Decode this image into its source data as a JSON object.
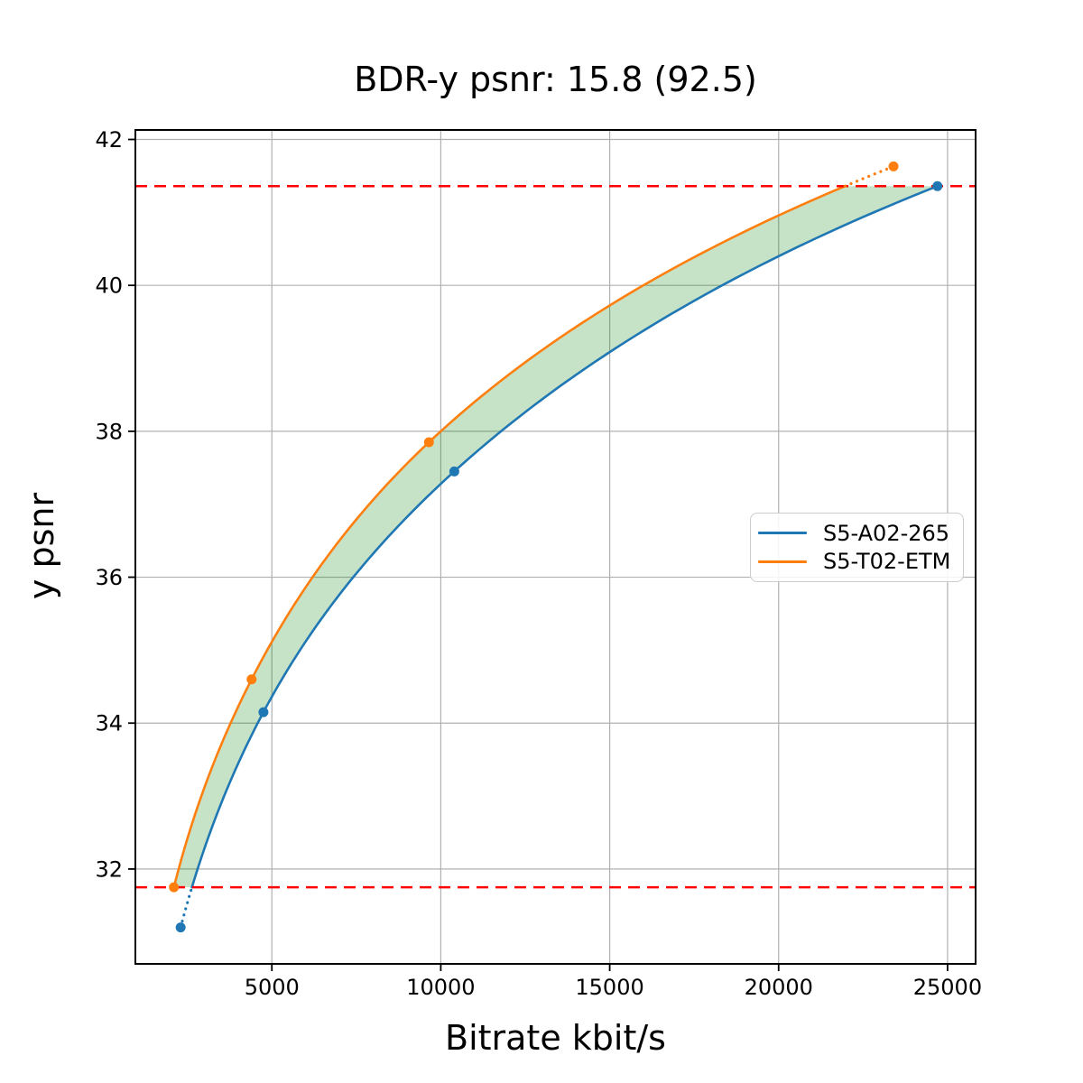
{
  "chart_data": {
    "type": "line",
    "title": "BDR-y psnr: 15.8 (92.5)",
    "xlabel": "Bitrate kbit/s",
    "ylabel": "y psnr",
    "xlim": [
      960,
      25830
    ],
    "ylim": [
      30.7,
      42.13
    ],
    "grid": true,
    "grid_color": "#b0b0b0",
    "x_tick_values": [
      5000,
      10000,
      15000,
      20000,
      25000
    ],
    "x_tick_labels": [
      "5000",
      "10000",
      "15000",
      "20000",
      "25000"
    ],
    "y_tick_values": [
      32,
      34,
      36,
      38,
      40,
      42
    ],
    "y_tick_labels": [
      "32",
      "34",
      "36",
      "38",
      "40",
      "42"
    ],
    "series": [
      {
        "name": "S5-A02-265",
        "color": "#1f77b4",
        "x": [
          2300,
          4750,
          10400,
          24700
        ],
        "y": [
          31.2,
          34.15,
          37.45,
          41.36
        ]
      },
      {
        "name": "S5-T02-ETM",
        "color": "#ff7f0e",
        "x": [
          2100,
          4400,
          9650,
          23400
        ],
        "y": [
          31.75,
          34.6,
          37.85,
          41.63
        ]
      }
    ],
    "overlap_psnr_range": [
      31.75,
      41.36
    ],
    "hlines": {
      "values": [
        31.75,
        41.36
      ],
      "color": "#ff0000",
      "style": "dashed"
    },
    "fill_between": {
      "color": "#008000",
      "opacity": 0.22
    },
    "legend_position": "right-center"
  }
}
